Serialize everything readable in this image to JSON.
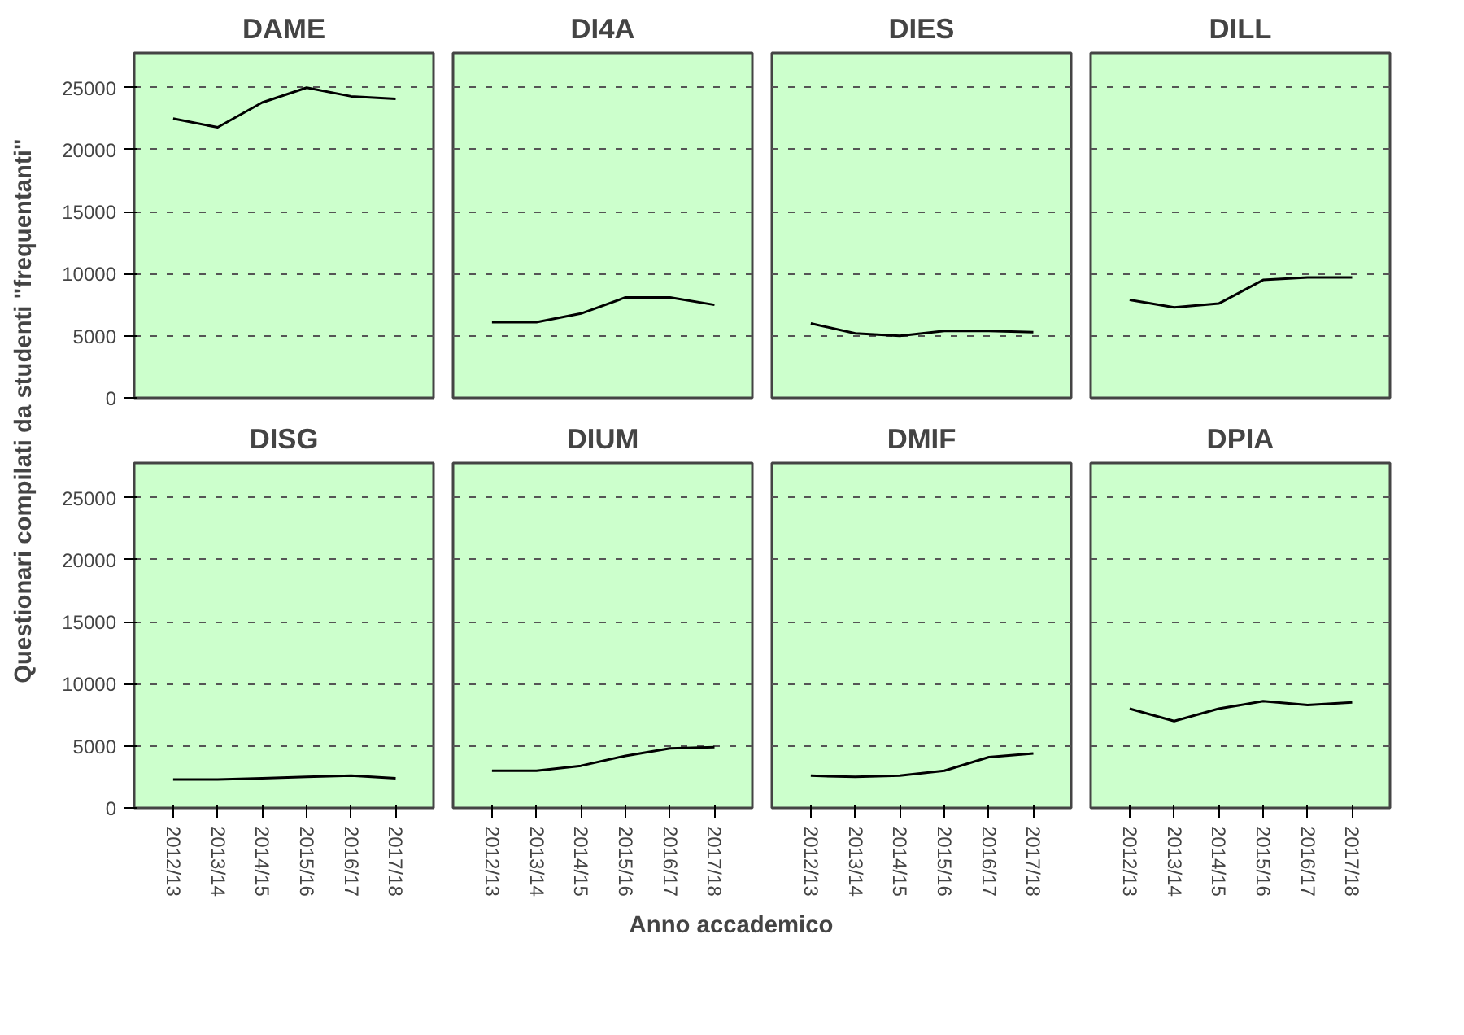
{
  "chart_data": [
    {
      "type": "line",
      "title": "DAME",
      "ylabel": "Questionari compilati da studenti \"frequentanti\"",
      "categories": [
        "2012/13",
        "2013/14",
        "2014/15",
        "2015/16",
        "2016/17",
        "2017/18"
      ],
      "values": [
        22500,
        21800,
        23800,
        25000,
        24300,
        24100
      ],
      "color": "#000000",
      "ylim": [
        0,
        27800
      ],
      "yticks": [
        0,
        5000,
        10000,
        15000,
        20000,
        25000
      ],
      "grid": "y",
      "tick_labels": "y"
    },
    {
      "type": "line",
      "title": "DI4A",
      "categories": [
        "2012/13",
        "2013/14",
        "2014/15",
        "2015/16",
        "2016/17",
        "2017/18"
      ],
      "values": [
        6100,
        6100,
        6800,
        8100,
        8100,
        7500
      ],
      "color": "#000000",
      "ylim": [
        0,
        27800
      ],
      "yticks": [
        0,
        5000,
        10000,
        15000,
        20000,
        25000
      ],
      "grid": "y",
      "tick_labels": false
    },
    {
      "type": "line",
      "title": "DIES",
      "categories": [
        "2012/13",
        "2013/14",
        "2014/15",
        "2015/16",
        "2016/17",
        "2017/18"
      ],
      "values": [
        6000,
        5200,
        5000,
        5400,
        5400,
        5300
      ],
      "color": "#000000",
      "ylim": [
        0,
        27800
      ],
      "yticks": [
        0,
        5000,
        10000,
        15000,
        20000,
        25000
      ],
      "grid": "y",
      "tick_labels": false
    },
    {
      "type": "line",
      "title": "DILL",
      "categories": [
        "2012/13",
        "2013/14",
        "2014/15",
        "2015/16",
        "2016/17",
        "2017/18"
      ],
      "values": [
        7900,
        7300,
        7600,
        9500,
        9700,
        9700
      ],
      "color": "#000000",
      "ylim": [
        0,
        27800
      ],
      "yticks": [
        0,
        5000,
        10000,
        15000,
        20000,
        25000
      ],
      "grid": "y",
      "tick_labels": false
    },
    {
      "type": "line",
      "title": "DISG",
      "categories": [
        "2012/13",
        "2013/14",
        "2014/15",
        "2015/16",
        "2016/17",
        "2017/18"
      ],
      "values": [
        2300,
        2300,
        2400,
        2500,
        2600,
        2400
      ],
      "color": "#000000",
      "ylim": [
        0,
        27800
      ],
      "yticks": [
        0,
        5000,
        10000,
        15000,
        20000,
        25000
      ],
      "grid": "y"
    },
    {
      "type": "line",
      "title": "DIUM",
      "xlabel": "Anno accademico",
      "categories": [
        "2012/13",
        "2013/14",
        "2014/15",
        "2015/16",
        "2016/17",
        "2017/18"
      ],
      "values": [
        3000,
        3000,
        3400,
        4200,
        4800,
        4900
      ],
      "color": "#000000",
      "ylim": [
        0,
        27800
      ],
      "yticks": [
        0,
        5000,
        10000,
        15000,
        20000,
        25000
      ],
      "grid": "y",
      "tick_labels": "x"
    },
    {
      "type": "line",
      "title": "DMIF",
      "categories": [
        "2012/13",
        "2013/14",
        "2014/15",
        "2015/16",
        "2016/17",
        "2017/18"
      ],
      "values": [
        2600,
        2500,
        2600,
        3000,
        4100,
        4400
      ],
      "color": "#000000",
      "ylim": [
        0,
        27800
      ],
      "yticks": [
        0,
        5000,
        10000,
        15000,
        20000,
        25000
      ],
      "grid": "y",
      "tick_labels": "x"
    },
    {
      "type": "line",
      "title": "DPIA",
      "categories": [
        "2012/13",
        "2013/14",
        "2014/15",
        "2015/16",
        "2016/17",
        "2017/18"
      ],
      "values": [
        8000,
        7000,
        8000,
        8600,
        8300,
        8500
      ],
      "color": "#000000",
      "ylim": [
        0,
        27800
      ],
      "yticks": [
        0,
        5000,
        10000,
        15000,
        20000,
        25000
      ],
      "grid": "y",
      "tick_labels": "x"
    }
  ]
}
